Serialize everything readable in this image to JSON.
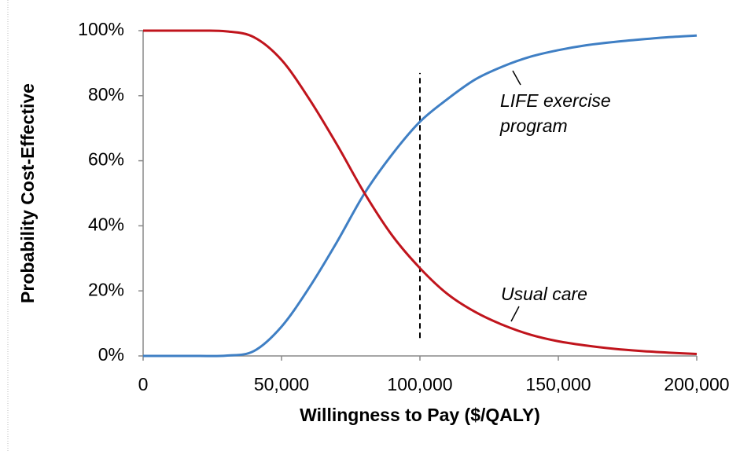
{
  "chart_data": {
    "type": "line",
    "xlabel": "Willingness to Pay ($/QALY)",
    "ylabel": "Probability Cost-Effective",
    "x": [
      0,
      10000,
      20000,
      30000,
      40000,
      50000,
      60000,
      70000,
      80000,
      90000,
      100000,
      110000,
      120000,
      130000,
      140000,
      150000,
      160000,
      170000,
      180000,
      190000,
      200000
    ],
    "series": [
      {
        "name": "LIFE exercise program",
        "color": "#3f7fc4",
        "values": [
          0,
          0,
          0,
          0.1,
          1.5,
          9,
          21,
          35,
          50,
          62,
          72,
          79,
          85,
          89,
          92,
          94,
          95.5,
          96.5,
          97.3,
          98,
          98.5
        ]
      },
      {
        "name": "Usual care",
        "color": "#c0141c",
        "values": [
          100,
          100,
          100,
          99.8,
          98,
          91,
          79,
          65,
          50,
          37,
          27,
          19,
          13.5,
          9.5,
          6.5,
          4.5,
          3.2,
          2.2,
          1.5,
          1,
          0.6
        ]
      }
    ],
    "annotations": [
      [
        "LIFE exercise",
        "program"
      ],
      [
        "Usual care"
      ]
    ],
    "reference_line": {
      "x": 100000,
      "y": [
        5.5,
        87
      ]
    },
    "xlim": [
      0,
      200000
    ],
    "xticks": [
      0,
      {
        "value": 50000,
        "label": "50,000"
      },
      {
        "value": 100000,
        "label": "100,000"
      },
      {
        "value": 150000,
        "label": "150,000"
      },
      {
        "value": 200000,
        "label": "200,000"
      }
    ],
    "ylim": [
      0,
      100
    ],
    "yticks": [
      {
        "value": 0,
        "label": "0%"
      },
      {
        "value": 20,
        "label": "20%"
      },
      {
        "value": 40,
        "label": "40%"
      },
      {
        "value": 60,
        "label": "60%"
      },
      {
        "value": 80,
        "label": "80%"
      },
      {
        "value": 100,
        "label": "100%"
      }
    ],
    "grid": false
  }
}
